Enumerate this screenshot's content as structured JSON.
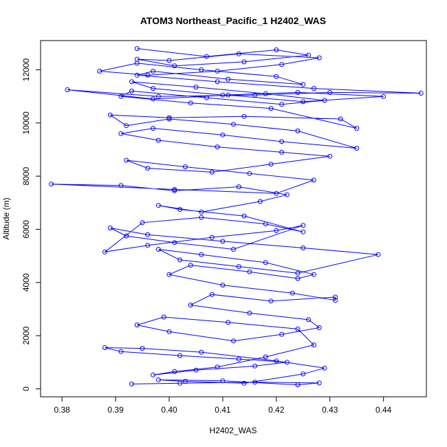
{
  "chart_data": {
    "type": "line",
    "title": "ATOM3 Northeast_Pacific_1 H2402_WAS",
    "xlabel": "H2402_WAS",
    "ylabel": "Altitude (m)",
    "xlim": [
      0.376,
      0.448
    ],
    "ylim": [
      -300,
      13100
    ],
    "x_ticks": [
      "0.38",
      "0.39",
      "0.40",
      "0.41",
      "0.42",
      "0.43",
      "0.44"
    ],
    "x_tick_values": [
      0.38,
      0.39,
      0.4,
      0.41,
      0.42,
      0.43,
      0.44
    ],
    "y_ticks": [
      "0",
      "2000",
      "4000",
      "6000",
      "8000",
      "10000",
      "12000"
    ],
    "y_tick_values": [
      0,
      2000,
      4000,
      6000,
      8000,
      10000,
      12000
    ],
    "grid": false,
    "legend": "none",
    "series": [
      {
        "marker": "open-circle",
        "color": "#0000ff",
        "x": [
          0.393,
          0.402,
          0.416,
          0.428,
          0.424,
          0.41,
          0.398,
          0.403,
          0.414,
          0.425,
          0.429,
          0.42,
          0.406,
          0.395,
          0.388,
          0.391,
          0.402,
          0.413,
          0.422,
          0.416,
          0.405,
          0.397,
          0.401,
          0.409,
          0.418,
          0.427,
          0.424,
          0.411,
          0.399,
          0.394,
          0.4,
          0.412,
          0.421,
          0.428,
          0.426,
          0.415,
          0.404,
          0.408,
          0.419,
          0.431,
          0.431,
          0.423,
          0.41,
          0.4,
          0.404,
          0.415,
          0.424,
          0.427,
          0.418,
          0.406,
          0.398,
          0.402,
          0.413,
          0.424,
          0.439,
          0.425,
          0.41,
          0.396,
          0.389,
          0.392,
          0.401,
          0.412,
          0.425,
          0.42,
          0.408,
          0.396,
          0.388,
          0.395,
          0.406,
          0.418,
          0.425,
          0.414,
          0.402,
          0.398,
          0.406,
          0.417,
          0.422,
          0.413,
          0.401,
          0.391,
          0.378,
          0.401,
          0.42,
          0.427,
          0.415,
          0.403,
          0.392,
          0.396,
          0.408,
          0.419,
          0.43,
          0.421,
          0.409,
          0.398,
          0.391,
          0.397,
          0.41,
          0.421,
          0.435,
          0.424,
          0.412,
          0.4,
          0.392,
          0.389,
          0.4,
          0.414,
          0.432,
          0.435,
          0.419,
          0.404,
          0.391,
          0.393,
          0.407,
          0.421,
          0.429,
          0.418,
          0.405,
          0.393,
          0.397,
          0.41,
          0.424,
          0.44,
          0.425,
          0.411,
          0.397,
          0.381,
          0.398,
          0.416,
          0.43,
          0.447,
          0.427,
          0.409,
          0.394,
          0.397,
          0.411,
          0.425,
          0.42,
          0.406,
          0.394,
          0.387,
          0.396,
          0.409,
          0.421,
          0.428,
          0.413,
          0.4,
          0.394,
          0.401,
          0.414,
          0.426,
          0.42,
          0.407,
          0.394
        ],
        "y": [
          180,
          210,
          250,
          220,
          150,
          300,
          340,
          280,
          210,
          560,
          780,
          1050,
          1380,
          1520,
          1550,
          1400,
          1250,
          1120,
          1000,
          860,
          700,
          520,
          650,
          820,
          1200,
          1650,
          2250,
          2500,
          2700,
          2400,
          2150,
          1800,
          2050,
          2300,
          2600,
          2850,
          3150,
          3550,
          3300,
          3450,
          3330,
          3600,
          3900,
          4300,
          4650,
          4400,
          4150,
          4300,
          4750,
          5050,
          5250,
          4850,
          4600,
          4350,
          5050,
          5300,
          5550,
          5800,
          6050,
          5750,
          5500,
          5250,
          6150,
          5950,
          5700,
          5400,
          5150,
          6250,
          6450,
          6200,
          5900,
          6500,
          6750,
          6900,
          6650,
          7050,
          7300,
          7600,
          7450,
          7650,
          7700,
          7500,
          7350,
          7850,
          8100,
          8350,
          8600,
          8300,
          8150,
          8450,
          8750,
          8900,
          9100,
          9350,
          9600,
          9800,
          9550,
          9300,
          9050,
          9700,
          9950,
          10150,
          9900,
          10300,
          10200,
          10250,
          10150,
          9800,
          10550,
          10750,
          11000,
          11200,
          10950,
          10700,
          10850,
          11100,
          11350,
          11550,
          11300,
          11050,
          11150,
          11000,
          10800,
          11050,
          10900,
          11250,
          11000,
          11050,
          11150,
          11120,
          11300,
          11550,
          11800,
          11950,
          11650,
          11450,
          11750,
          12000,
          12250,
          11950,
          11800,
          11950,
          12200,
          12450,
          12600,
          12350,
          12400,
          12150,
          12300,
          12550,
          12750,
          12500,
          12800
        ]
      }
    ]
  }
}
